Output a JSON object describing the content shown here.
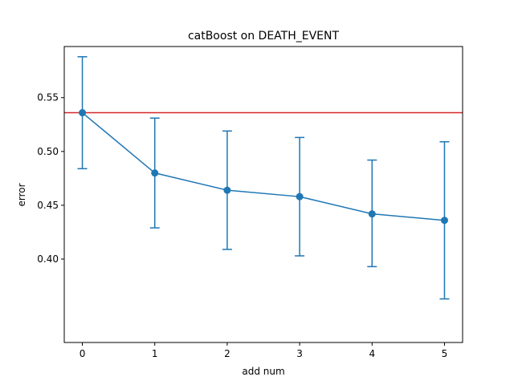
{
  "chart_data": {
    "type": "line",
    "title": "catBoost on DEATH_EVENT",
    "xlabel": "add num",
    "ylabel": "error",
    "xlim": [
      -0.25,
      5.25
    ],
    "ylim": [
      0.3225,
      0.5975
    ],
    "x_ticks": [
      0,
      1,
      2,
      3,
      4,
      5
    ],
    "y_ticks": [
      0.4,
      0.45,
      0.5,
      0.55
    ],
    "y_tick_labels": [
      "0.40",
      "0.45",
      "0.50",
      "0.55"
    ],
    "grid": false,
    "series": [
      {
        "x": [
          0,
          1,
          2,
          3,
          4,
          5
        ],
        "values": [
          0.536,
          0.48,
          0.464,
          0.458,
          0.442,
          0.436
        ],
        "error_lower": [
          0.484,
          0.429,
          0.409,
          0.403,
          0.393,
          0.363
        ],
        "error_upper": [
          0.588,
          0.531,
          0.519,
          0.513,
          0.492,
          0.509
        ],
        "color": "#1f77b4",
        "marker": "circle"
      }
    ],
    "reference_line": {
      "y": 0.536,
      "color": "#d62728"
    }
  },
  "colors": {
    "axes": "#000000",
    "background": "#ffffff"
  }
}
